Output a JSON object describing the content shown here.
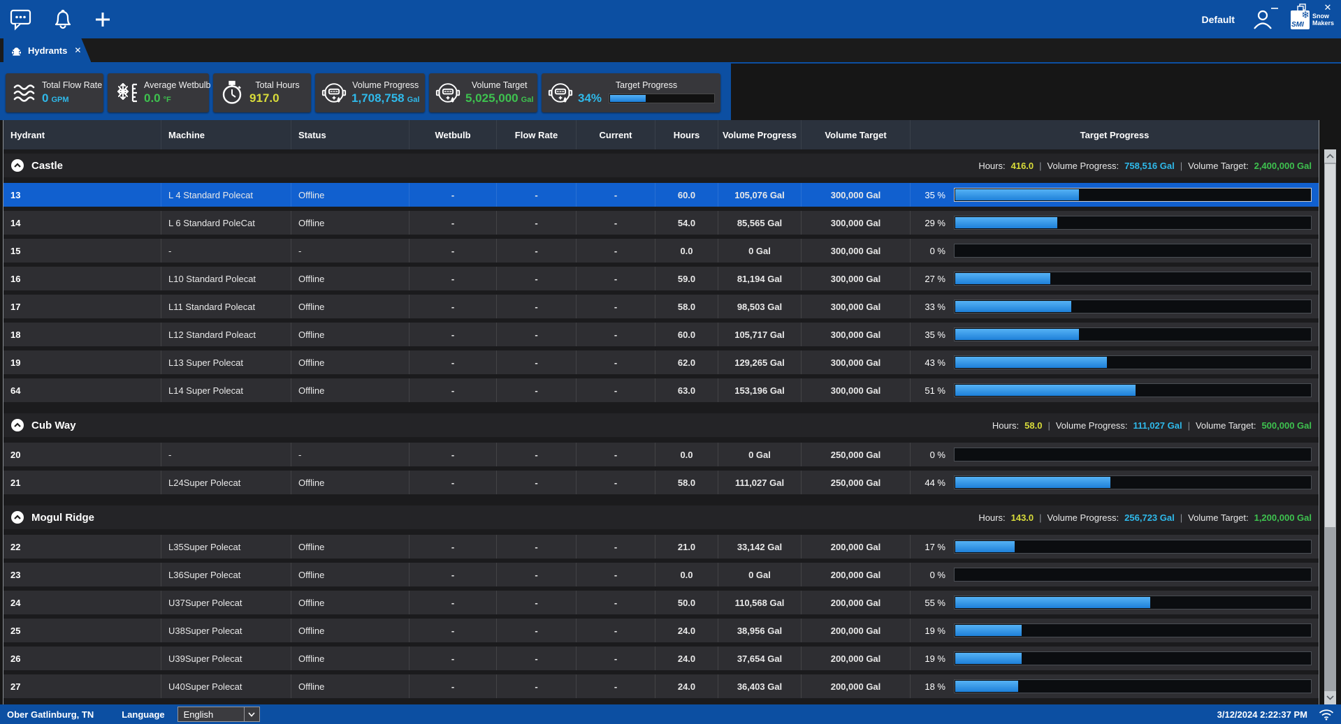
{
  "titlebar": {
    "profile_label": "Default",
    "brand": {
      "abbr": "SMI",
      "flake": "❄",
      "line1": "Snow",
      "line2": "Makers"
    },
    "window_buttons": {
      "minimize": "minimize",
      "restore": "restore",
      "close": "✕"
    }
  },
  "tabs": [
    {
      "label": "Hydrants",
      "icon": "hydrant-icon",
      "close": "✕",
      "active": true
    }
  ],
  "stat_cards": [
    {
      "id": "total-flow-rate",
      "label": "Total Flow Rate",
      "value": "0",
      "unit": "GPM",
      "color": "#2fb9ea",
      "icon": "waves-icon"
    },
    {
      "id": "average-wetbulb",
      "label": "Average Wetbulb",
      "value": "0.0",
      "unit": "°F",
      "color": "#3ec24f",
      "icon": "snowflake-icon"
    },
    {
      "id": "total-hours",
      "label": "Total Hours",
      "value": "917.0",
      "unit": "",
      "color": "#d9dc3a",
      "icon": "stopwatch-icon"
    },
    {
      "id": "volume-progress",
      "label": "Volume Progress",
      "value": "1,708,758",
      "unit": "Gal",
      "color": "#2fb9ea",
      "icon": "water-meter-icon"
    },
    {
      "id": "volume-target",
      "label": "Volume Target",
      "value": "5,025,000",
      "unit": "Gal",
      "color": "#3ec24f",
      "icon": "water-meter-icon"
    },
    {
      "id": "target-progress",
      "label": "Target Progress",
      "value": "34%",
      "unit": "",
      "color": "#2fb9ea",
      "icon": "water-meter-icon",
      "progress": 34
    }
  ],
  "table": {
    "columns": [
      "Hydrant",
      "Machine",
      "Status",
      "Wetbulb",
      "Flow Rate",
      "Current",
      "Hours",
      "Volume Progress",
      "Volume Target",
      "Target Progress"
    ],
    "summary_labels": {
      "hours": "Hours:",
      "volume_progress": "Volume Progress:",
      "volume_target": "Volume Target:",
      "separator": "|"
    },
    "groups": [
      {
        "name": "Castle",
        "summary": {
          "hours": "416.0",
          "volume_progress": "758,516 Gal",
          "volume_target": "2,400,000 Gal"
        },
        "rows": [
          {
            "hydrant": "13",
            "machine": "L 4 Standard Polecat",
            "status": "Offline",
            "wetbulb": "-",
            "flow_rate": "-",
            "current": "-",
            "hours": "60.0",
            "volume_progress": "105,076 Gal",
            "volume_target": "300,000 Gal",
            "percent": "35 %",
            "percent_value": 35,
            "selected": true
          },
          {
            "hydrant": "14",
            "machine": "L 6 Standard PoleCat",
            "status": "Offline",
            "wetbulb": "-",
            "flow_rate": "-",
            "current": "-",
            "hours": "54.0",
            "volume_progress": "85,565 Gal",
            "volume_target": "300,000 Gal",
            "percent": "29 %",
            "percent_value": 29
          },
          {
            "hydrant": "15",
            "machine": "-",
            "status": "-",
            "wetbulb": "-",
            "flow_rate": "-",
            "current": "-",
            "hours": "0.0",
            "volume_progress": "0 Gal",
            "volume_target": "300,000 Gal",
            "percent": "0 %",
            "percent_value": 0
          },
          {
            "hydrant": "16",
            "machine": "L10 Standard Polecat",
            "status": "Offline",
            "wetbulb": "-",
            "flow_rate": "-",
            "current": "-",
            "hours": "59.0",
            "volume_progress": "81,194 Gal",
            "volume_target": "300,000 Gal",
            "percent": "27 %",
            "percent_value": 27
          },
          {
            "hydrant": "17",
            "machine": "L11 Standard Polecat",
            "status": "Offline",
            "wetbulb": "-",
            "flow_rate": "-",
            "current": "-",
            "hours": "58.0",
            "volume_progress": "98,503 Gal",
            "volume_target": "300,000 Gal",
            "percent": "33 %",
            "percent_value": 33
          },
          {
            "hydrant": "18",
            "machine": "L12 Standard Poleact",
            "status": "Offline",
            "wetbulb": "-",
            "flow_rate": "-",
            "current": "-",
            "hours": "60.0",
            "volume_progress": "105,717 Gal",
            "volume_target": "300,000 Gal",
            "percent": "35 %",
            "percent_value": 35
          },
          {
            "hydrant": "19",
            "machine": "L13 Super Polecat",
            "status": "Offline",
            "wetbulb": "-",
            "flow_rate": "-",
            "current": "-",
            "hours": "62.0",
            "volume_progress": "129,265 Gal",
            "volume_target": "300,000 Gal",
            "percent": "43 %",
            "percent_value": 43
          },
          {
            "hydrant": "64",
            "machine": "L14 Super Polecat",
            "status": "Offline",
            "wetbulb": "-",
            "flow_rate": "-",
            "current": "-",
            "hours": "63.0",
            "volume_progress": "153,196 Gal",
            "volume_target": "300,000 Gal",
            "percent": "51 %",
            "percent_value": 51
          }
        ]
      },
      {
        "name": "Cub Way",
        "summary": {
          "hours": "58.0",
          "volume_progress": "111,027 Gal",
          "volume_target": "500,000 Gal"
        },
        "rows": [
          {
            "hydrant": "20",
            "machine": "-",
            "status": "-",
            "wetbulb": "-",
            "flow_rate": "-",
            "current": "-",
            "hours": "0.0",
            "volume_progress": "0 Gal",
            "volume_target": "250,000 Gal",
            "percent": "0 %",
            "percent_value": 0
          },
          {
            "hydrant": "21",
            "machine": "L24Super Polecat",
            "status": "Offline",
            "wetbulb": "-",
            "flow_rate": "-",
            "current": "-",
            "hours": "58.0",
            "volume_progress": "111,027 Gal",
            "volume_target": "250,000 Gal",
            "percent": "44 %",
            "percent_value": 44
          }
        ]
      },
      {
        "name": "Mogul Ridge",
        "summary": {
          "hours": "143.0",
          "volume_progress": "256,723 Gal",
          "volume_target": "1,200,000 Gal"
        },
        "rows": [
          {
            "hydrant": "22",
            "machine": "L35Super Polecat",
            "status": "Offline",
            "wetbulb": "-",
            "flow_rate": "-",
            "current": "-",
            "hours": "21.0",
            "volume_progress": "33,142 Gal",
            "volume_target": "200,000 Gal",
            "percent": "17 %",
            "percent_value": 17
          },
          {
            "hydrant": "23",
            "machine": "L36Super Polecat",
            "status": "Offline",
            "wetbulb": "-",
            "flow_rate": "-",
            "current": "-",
            "hours": "0.0",
            "volume_progress": "0 Gal",
            "volume_target": "200,000 Gal",
            "percent": "0 %",
            "percent_value": 0
          },
          {
            "hydrant": "24",
            "machine": "U37Super Polecat",
            "status": "Offline",
            "wetbulb": "-",
            "flow_rate": "-",
            "current": "-",
            "hours": "50.0",
            "volume_progress": "110,568 Gal",
            "volume_target": "200,000 Gal",
            "percent": "55 %",
            "percent_value": 55
          },
          {
            "hydrant": "25",
            "machine": "U38Super Polecat",
            "status": "Offline",
            "wetbulb": "-",
            "flow_rate": "-",
            "current": "-",
            "hours": "24.0",
            "volume_progress": "38,956 Gal",
            "volume_target": "200,000 Gal",
            "percent": "19 %",
            "percent_value": 19
          },
          {
            "hydrant": "26",
            "machine": "U39Super Polecat",
            "status": "Offline",
            "wetbulb": "-",
            "flow_rate": "-",
            "current": "-",
            "hours": "24.0",
            "volume_progress": "37,654 Gal",
            "volume_target": "200,000 Gal",
            "percent": "19 %",
            "percent_value": 19
          },
          {
            "hydrant": "27",
            "machine": "U40Super Polecat",
            "status": "Offline",
            "wetbulb": "-",
            "flow_rate": "-",
            "current": "-",
            "hours": "24.0",
            "volume_progress": "36,403 Gal",
            "volume_target": "200,000 Gal",
            "percent": "18 %",
            "percent_value": 18
          }
        ]
      }
    ]
  },
  "statusbar": {
    "location": "Ober Gatlinburg, TN",
    "language_label": "Language",
    "language_value": "English",
    "datetime": "3/12/2024 2:22:37 PM"
  },
  "colors": {
    "accent_blue": "#0c4fa2",
    "selected_row": "#1160cf",
    "cyan": "#2fb9ea",
    "green": "#3ec24f",
    "yellow": "#d9dc3a",
    "bar_fill": "#2e9df5"
  }
}
